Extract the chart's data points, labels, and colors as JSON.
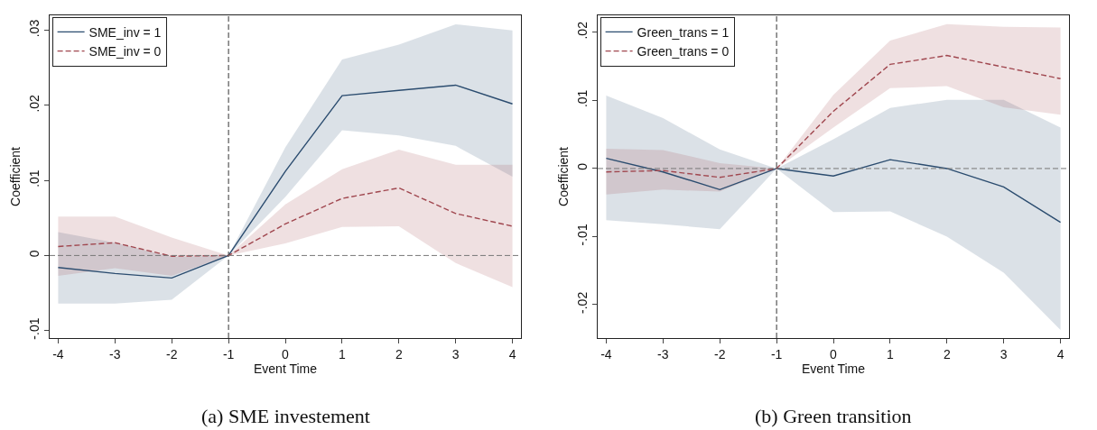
{
  "chart_data": [
    {
      "type": "line",
      "x": [
        -4,
        -3,
        -2,
        -1,
        0,
        1,
        2,
        3,
        4
      ],
      "xlabel": "Event Time",
      "ylabel": "Coefficient",
      "xlim": [
        -4.15,
        4.15
      ],
      "xticks": [
        -4,
        -3,
        -2,
        -1,
        0,
        1,
        2,
        3,
        4
      ],
      "ylim": [
        -0.011,
        0.032
      ],
      "yticks": [
        {
          "value": -0.01,
          "label": "-.01"
        },
        0,
        {
          "value": 0.01,
          "label": ".01"
        },
        {
          "value": 0.02,
          "label": ".02"
        },
        {
          "value": 0.03,
          "label": ".03"
        }
      ],
      "grid": false,
      "legend": "top left",
      "marker": "none",
      "series": [
        {
          "name": "SME_inv = 1",
          "color": "#2b4c6f",
          "line_style": "solid",
          "values": [
            -0.0016,
            -0.0024,
            -0.003,
            0,
            0.0112,
            0.0213,
            0.022,
            0.0227,
            0.0202
          ],
          "lower": [
            -0.0064,
            -0.0064,
            -0.0059,
            0,
            0.0078,
            0.0167,
            0.016,
            0.0146,
            0.0105
          ],
          "upper": [
            0.0031,
            0.0017,
            -0.0002,
            0,
            0.0144,
            0.0261,
            0.0281,
            0.0308,
            0.03
          ]
        },
        {
          "name": "SME_inv = 0",
          "color": "#a0474f",
          "line_style": "dashed",
          "values": [
            0.0012,
            0.0017,
            -0.0001,
            0,
            0.0042,
            0.0076,
            0.009,
            0.0056,
            0.0039
          ],
          "lower": [
            -0.0027,
            -0.0017,
            -0.0027,
            0,
            0.0016,
            0.0038,
            0.0039,
            -0.001,
            -0.0042
          ],
          "upper": [
            0.0052,
            0.0052,
            0.0024,
            0,
            0.0068,
            0.0115,
            0.0141,
            0.0121,
            0.0121
          ]
        }
      ],
      "ref_lines": [
        {
          "axis": "x",
          "value": -1,
          "line_style": "dashed",
          "color": "#333333"
        },
        {
          "axis": "y",
          "value": 0,
          "line_style": "dashed",
          "color": "#777777"
        }
      ],
      "annotations": [
        "(a) SME investement"
      ]
    },
    {
      "type": "line",
      "x": [
        -4,
        -3,
        -2,
        -1,
        0,
        1,
        2,
        3,
        4
      ],
      "xlabel": "Event Time",
      "ylabel": "Coefficient",
      "xlim": [
        -4.15,
        4.15
      ],
      "xticks": [
        -4,
        -3,
        -2,
        -1,
        0,
        1,
        2,
        3,
        4
      ],
      "ylim": [
        -0.0249,
        0.0225
      ],
      "yticks": [
        {
          "value": -0.02,
          "label": "-.02"
        },
        {
          "value": -0.01,
          "label": "-.01"
        },
        0,
        {
          "value": 0.01,
          "label": ".01"
        },
        {
          "value": 0.02,
          "label": ".02"
        }
      ],
      "grid": false,
      "legend": "top left",
      "marker": "none",
      "series": [
        {
          "name": "Green_trans = 1",
          "color": "#2b4c6f",
          "line_style": "solid",
          "values": [
            0.0015,
            -0.0005,
            -0.0031,
            0,
            -0.0011,
            0.0013,
            0,
            -0.0027,
            -0.0079
          ],
          "lower": [
            -0.0076,
            -0.0082,
            -0.0089,
            0,
            -0.0064,
            -0.0063,
            -0.01,
            -0.0153,
            -0.0237
          ],
          "upper": [
            0.0107,
            0.0074,
            0.0028,
            0,
            0.0043,
            0.0089,
            0.0101,
            0.0101,
            0.006
          ]
        },
        {
          "name": "Green_trans = 0",
          "color": "#a0474f",
          "line_style": "dashed",
          "values": [
            -0.0005,
            -0.0003,
            -0.0013,
            0,
            0.0084,
            0.0153,
            0.0166,
            0.0149,
            0.0132
          ],
          "lower": [
            -0.0038,
            -0.0031,
            -0.0034,
            0,
            0.006,
            0.0118,
            0.0121,
            0.009,
            0.0079
          ],
          "upper": [
            0.0029,
            0.0027,
            0.0008,
            0,
            0.0108,
            0.0188,
            0.0212,
            0.0208,
            0.0207
          ]
        }
      ],
      "ref_lines": [
        {
          "axis": "x",
          "value": -1,
          "line_style": "dashed",
          "color": "#333333"
        },
        {
          "axis": "y",
          "value": 0,
          "line_style": "dashed",
          "color": "#777777"
        }
      ],
      "annotations": [
        "(b) Green transition"
      ]
    }
  ]
}
